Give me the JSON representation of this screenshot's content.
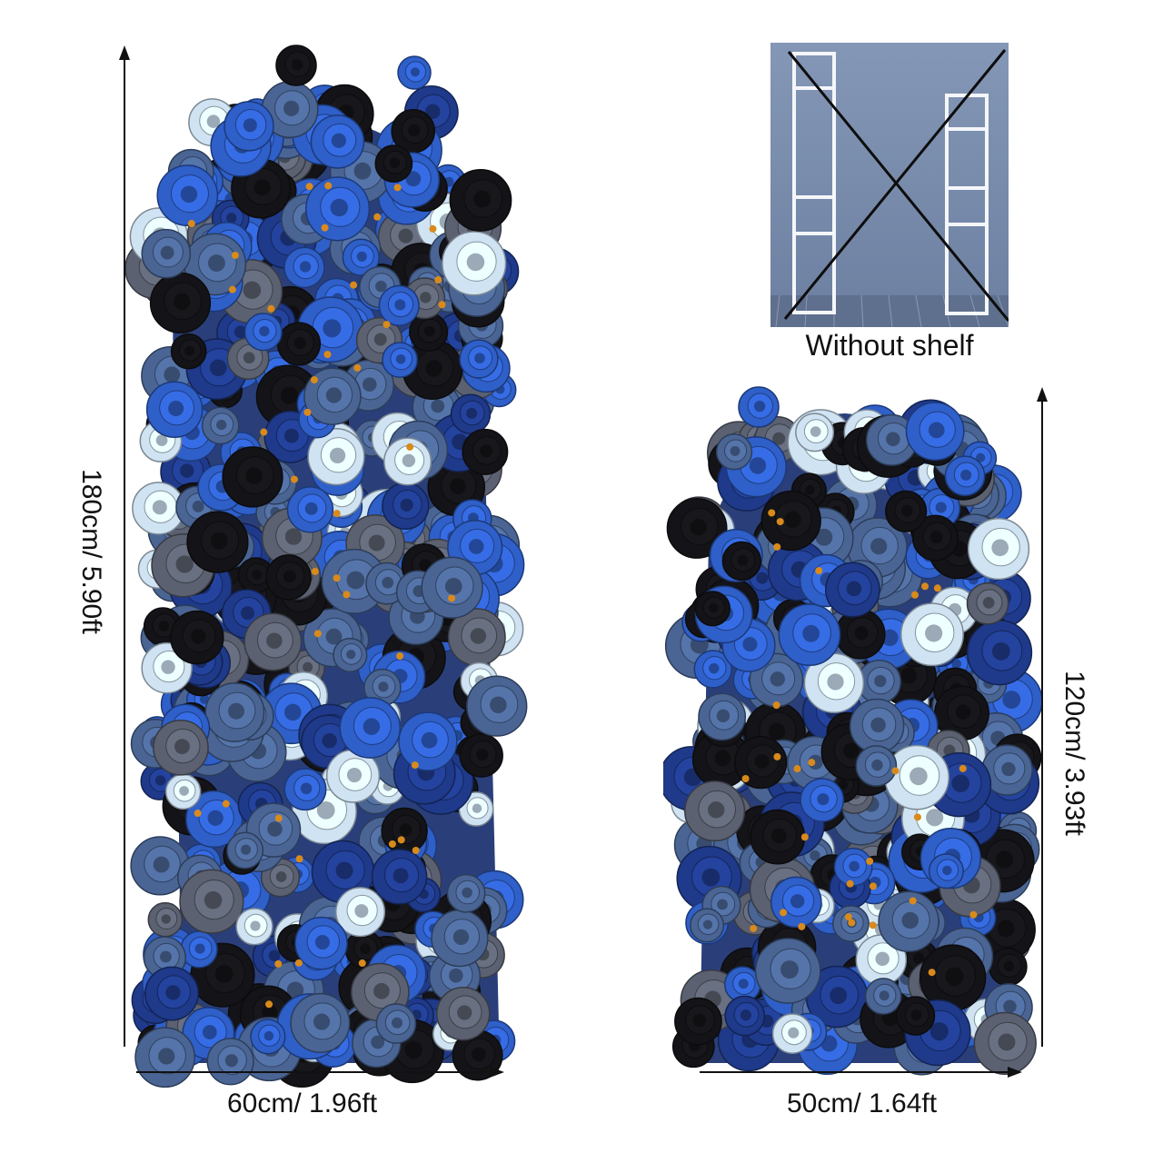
{
  "products": [
    {
      "name": "tall-flower-column",
      "height_label": "180cm/ 5.90ft",
      "width_label": "60cm/ 1.96ft"
    },
    {
      "name": "short-flower-column",
      "height_label": "120cm/ 3.93ft",
      "width_label": "50cm/ 1.64ft"
    }
  ],
  "shelf_notice": {
    "caption": "Without shelf"
  },
  "colors": {
    "royal_blue": "#2f5fc8",
    "navy": "#1f3a8a",
    "steel_blue": "#4a6594",
    "black_rose": "#141418",
    "pale_blue": "#cfe3f3",
    "grey": "#5b6170",
    "orange_accent": "#d98a1c"
  }
}
